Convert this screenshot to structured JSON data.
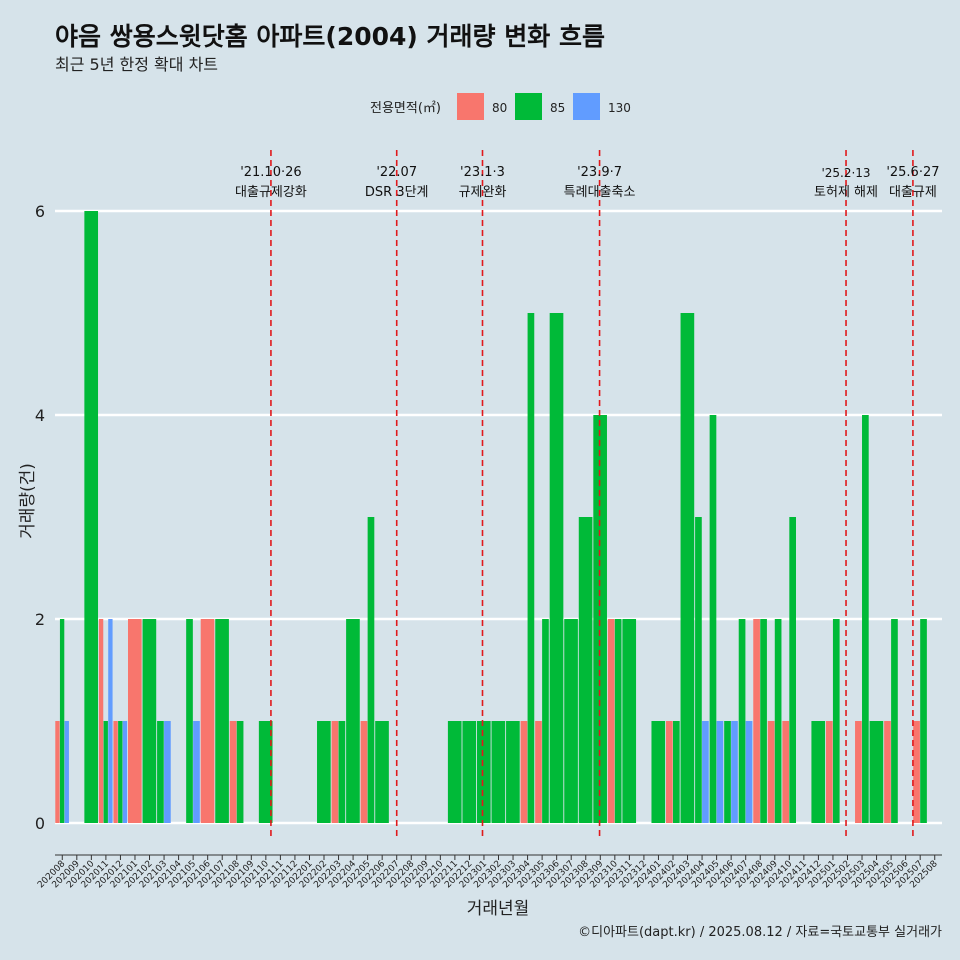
{
  "title": "야음 쌍용스윗닷홈 아파트(2004) 거래량 변화 흐름",
  "subtitle": "최근 5년 한정 확대 차트",
  "caption": "©디아파트(dapt.kr) / 2025.08.12 / 자료=국토교통부 실거래가",
  "colors": {
    "background": "#d6e3ea",
    "s80": "#f8766d",
    "s85": "#00ba38",
    "s130": "#619cff",
    "event": "#e0191c",
    "grid": "#ffffff"
  },
  "chart_data": {
    "type": "bar",
    "title": "야음 쌍용스윗닷홈 아파트(2004) 거래량 변화 흐름",
    "subtitle": "최근 5년 한정 확대 차트",
    "xlabel": "거래년월",
    "ylabel": "거래량(건)",
    "ylim": [
      0,
      6.4
    ],
    "yticks": [
      "0",
      "2",
      "4",
      "6"
    ],
    "grid": "horizontal",
    "legend": {
      "title": "전용면적(㎡)",
      "position": "top",
      "entries": [
        "80",
        "85",
        "130"
      ]
    },
    "categories": [
      "202008",
      "202009",
      "202010",
      "202011",
      "202012",
      "202101",
      "202102",
      "202103",
      "202104",
      "202105",
      "202106",
      "202107",
      "202108",
      "202109",
      "202110",
      "202111",
      "202112",
      "202201",
      "202202",
      "202203",
      "202204",
      "202205",
      "202206",
      "202207",
      "202208",
      "202209",
      "202210",
      "202211",
      "202212",
      "202301",
      "202302",
      "202303",
      "202304",
      "202305",
      "202306",
      "202307",
      "202308",
      "202309",
      "202310",
      "202311",
      "202312",
      "202401",
      "202402",
      "202403",
      "202404",
      "202405",
      "202406",
      "202407",
      "202408",
      "202409",
      "202410",
      "202411",
      "202412",
      "202501",
      "202502",
      "202503",
      "202504",
      "202505",
      "202506",
      "202507",
      "202508"
    ],
    "series": [
      {
        "name": "80",
        "values": [
          1,
          0,
          0,
          2,
          1,
          2,
          0,
          0,
          0,
          0,
          2,
          0,
          1,
          0,
          0,
          0,
          0,
          0,
          0,
          1,
          0,
          1,
          0,
          0,
          0,
          0,
          0,
          0,
          0,
          0,
          0,
          0,
          1,
          1,
          0,
          0,
          0,
          0,
          2,
          0,
          0,
          0,
          1,
          0,
          0,
          0,
          0,
          0,
          2,
          1,
          1,
          0,
          0,
          1,
          0,
          1,
          0,
          1,
          0,
          1,
          0
        ]
      },
      {
        "name": "85",
        "values": [
          2,
          0,
          6,
          1,
          1,
          0,
          2,
          1,
          0,
          2,
          0,
          2,
          1,
          0,
          1,
          0,
          0,
          0,
          1,
          1,
          2,
          3,
          1,
          0,
          0,
          0,
          0,
          1,
          1,
          1,
          1,
          1,
          5,
          2,
          5,
          2,
          3,
          4,
          2,
          2,
          0,
          1,
          1,
          5,
          3,
          4,
          1,
          2,
          2,
          2,
          3,
          0,
          1,
          2,
          0,
          4,
          1,
          2,
          0,
          2,
          0
        ]
      },
      {
        "name": "130",
        "values": [
          1,
          0,
          0,
          2,
          1,
          0,
          0,
          1,
          0,
          1,
          0,
          0,
          0,
          0,
          0,
          0,
          0,
          0,
          0,
          0,
          0,
          0,
          0,
          0,
          0,
          0,
          0,
          0,
          0,
          0,
          0,
          0,
          0,
          0,
          0,
          0,
          0,
          0,
          0,
          0,
          0,
          0,
          0,
          0,
          1,
          1,
          1,
          1,
          0,
          0,
          0,
          0,
          0,
          0,
          0,
          0,
          0,
          0,
          0,
          0,
          0
        ]
      }
    ],
    "events": [
      {
        "date": "'21.10·26",
        "label": "대출규제강화",
        "category": "202110",
        "offset": 0.35
      },
      {
        "date": "'22.07",
        "label": "DSR 3단계",
        "category": "202207",
        "offset": 0.0
      },
      {
        "date": "'23.1·3",
        "label": "규제완화",
        "category": "202301",
        "offset": -0.1
      },
      {
        "date": "'23.9·7",
        "label": "특례대출축소",
        "category": "202309",
        "offset": -0.05
      },
      {
        "date": "'25.2·13",
        "label": "토허제 해제",
        "category": "202502",
        "offset": -0.1
      },
      {
        "date": "'25.6·27",
        "label": "대출규제",
        "category": "202506",
        "offset": 0.5
      }
    ]
  }
}
